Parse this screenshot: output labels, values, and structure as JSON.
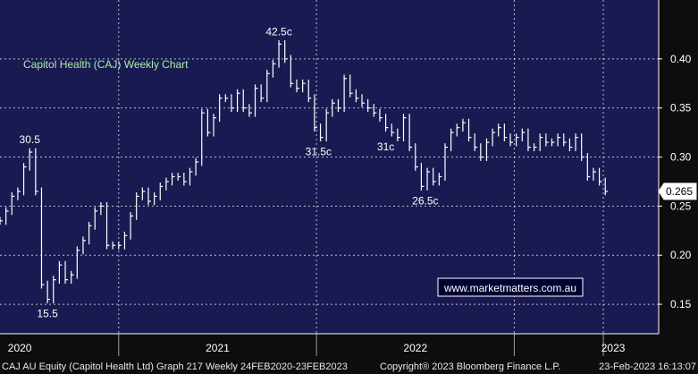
{
  "chart_data": {
    "type": "line",
    "title": "Capitol Health (CAJ) Weekly Chart",
    "xlabel": "",
    "ylabel": "",
    "x_range": [
      2019.9,
      2023.23
    ],
    "ylim": [
      0.12,
      0.46
    ],
    "yticks": [
      0.15,
      0.2,
      0.25,
      0.3,
      0.35,
      0.4
    ],
    "ytick_labels": [
      "0.15",
      "0.20",
      "0.25",
      "0.30",
      "0.35",
      "0.40"
    ],
    "year_labels": [
      {
        "label": "2020",
        "x": 2020.0
      },
      {
        "label": "2021",
        "x": 2021.0
      },
      {
        "label": "2022",
        "x": 2022.0
      },
      {
        "label": "2023",
        "x": 2023.0
      }
    ],
    "year_boundaries": [
      2020.5,
      2021.5,
      2022.5,
      2022.95
    ],
    "last_price": "0.265",
    "last_value": 0.265,
    "grid": true,
    "legend": "none",
    "series": [
      {
        "values": [
          [
            2019.9,
            0.235
          ],
          [
            2019.93,
            0.245
          ],
          [
            2019.96,
            0.26
          ],
          [
            2019.99,
            0.265
          ],
          [
            2020.02,
            0.29
          ],
          [
            2020.05,
            0.305
          ],
          [
            2020.08,
            0.265
          ],
          [
            2020.11,
            0.17
          ],
          [
            2020.14,
            0.155
          ],
          [
            2020.17,
            0.175
          ],
          [
            2020.2,
            0.19
          ],
          [
            2020.23,
            0.175
          ],
          [
            2020.26,
            0.18
          ],
          [
            2020.29,
            0.205
          ],
          [
            2020.32,
            0.215
          ],
          [
            2020.35,
            0.23
          ],
          [
            2020.38,
            0.245
          ],
          [
            2020.41,
            0.25
          ],
          [
            2020.44,
            0.21
          ],
          [
            2020.47,
            0.21
          ],
          [
            2020.5,
            0.21
          ],
          [
            2020.53,
            0.22
          ],
          [
            2020.56,
            0.24
          ],
          [
            2020.59,
            0.26
          ],
          [
            2020.62,
            0.265
          ],
          [
            2020.65,
            0.255
          ],
          [
            2020.68,
            0.26
          ],
          [
            2020.71,
            0.27
          ],
          [
            2020.74,
            0.275
          ],
          [
            2020.77,
            0.28
          ],
          [
            2020.8,
            0.28
          ],
          [
            2020.83,
            0.275
          ],
          [
            2020.86,
            0.285
          ],
          [
            2020.89,
            0.295
          ],
          [
            2020.92,
            0.345
          ],
          [
            2020.95,
            0.325
          ],
          [
            2020.98,
            0.34
          ],
          [
            2021.01,
            0.36
          ],
          [
            2021.04,
            0.36
          ],
          [
            2021.07,
            0.35
          ],
          [
            2021.1,
            0.365
          ],
          [
            2021.13,
            0.35
          ],
          [
            2021.16,
            0.345
          ],
          [
            2021.19,
            0.37
          ],
          [
            2021.22,
            0.36
          ],
          [
            2021.25,
            0.385
          ],
          [
            2021.28,
            0.395
          ],
          [
            2021.31,
            0.415
          ],
          [
            2021.34,
            0.4
          ],
          [
            2021.37,
            0.375
          ],
          [
            2021.4,
            0.37
          ],
          [
            2021.43,
            0.375
          ],
          [
            2021.46,
            0.36
          ],
          [
            2021.49,
            0.33
          ],
          [
            2021.52,
            0.32
          ],
          [
            2021.55,
            0.345
          ],
          [
            2021.58,
            0.355
          ],
          [
            2021.61,
            0.35
          ],
          [
            2021.64,
            0.38
          ],
          [
            2021.67,
            0.365
          ],
          [
            2021.7,
            0.36
          ],
          [
            2021.73,
            0.355
          ],
          [
            2021.76,
            0.35
          ],
          [
            2021.79,
            0.345
          ],
          [
            2021.82,
            0.34
          ],
          [
            2021.85,
            0.33
          ],
          [
            2021.88,
            0.325
          ],
          [
            2021.91,
            0.32
          ],
          [
            2021.94,
            0.34
          ],
          [
            2021.97,
            0.31
          ],
          [
            2022.0,
            0.29
          ],
          [
            2022.03,
            0.27
          ],
          [
            2022.06,
            0.285
          ],
          [
            2022.09,
            0.275
          ],
          [
            2022.12,
            0.28
          ],
          [
            2022.15,
            0.31
          ],
          [
            2022.18,
            0.325
          ],
          [
            2022.21,
            0.33
          ],
          [
            2022.24,
            0.335
          ],
          [
            2022.27,
            0.32
          ],
          [
            2022.3,
            0.31
          ],
          [
            2022.33,
            0.3
          ],
          [
            2022.36,
            0.315
          ],
          [
            2022.39,
            0.325
          ],
          [
            2022.42,
            0.33
          ],
          [
            2022.45,
            0.32
          ],
          [
            2022.48,
            0.315
          ],
          [
            2022.51,
            0.32
          ],
          [
            2022.54,
            0.325
          ],
          [
            2022.57,
            0.31
          ],
          [
            2022.6,
            0.31
          ],
          [
            2022.63,
            0.32
          ],
          [
            2022.66,
            0.315
          ],
          [
            2022.69,
            0.315
          ],
          [
            2022.72,
            0.32
          ],
          [
            2022.75,
            0.315
          ],
          [
            2022.78,
            0.31
          ],
          [
            2022.81,
            0.32
          ],
          [
            2022.84,
            0.3
          ],
          [
            2022.87,
            0.28
          ],
          [
            2022.9,
            0.285
          ],
          [
            2022.93,
            0.275
          ],
          [
            2022.96,
            0.265
          ]
        ]
      }
    ],
    "annotations": [
      {
        "label": "30.5",
        "x": 2020.05,
        "y": 0.305,
        "pos": "above"
      },
      {
        "label": "15.5",
        "x": 2020.14,
        "y": 0.155,
        "pos": "below"
      },
      {
        "label": "42.5c",
        "x": 2021.31,
        "y": 0.415,
        "pos": "above"
      },
      {
        "label": "31.5c",
        "x": 2021.51,
        "y": 0.32,
        "pos": "below"
      },
      {
        "label": "31c",
        "x": 2021.85,
        "y": 0.325,
        "pos": "below"
      },
      {
        "label": "26.5c",
        "x": 2022.05,
        "y": 0.27,
        "pos": "below"
      }
    ]
  },
  "watermark": "www.marketmatters.com.au",
  "footer": {
    "left": "CAJ AU Equity (Capitol Health Ltd) Graph 217  Weekly 24FEB2020-23FEB2023",
    "center": "Copyright® 2023 Bloomberg Finance L.P.",
    "right": "23-Feb-2023 16:13:07"
  },
  "colors": {
    "background": "#0d0d0d",
    "plot_bg": "#1a1a52",
    "grid": "#ffffff",
    "line": "#ffffff",
    "title": "#a8f0a8",
    "watermark_box": "#000033",
    "watermark_text": "#ffffff"
  }
}
